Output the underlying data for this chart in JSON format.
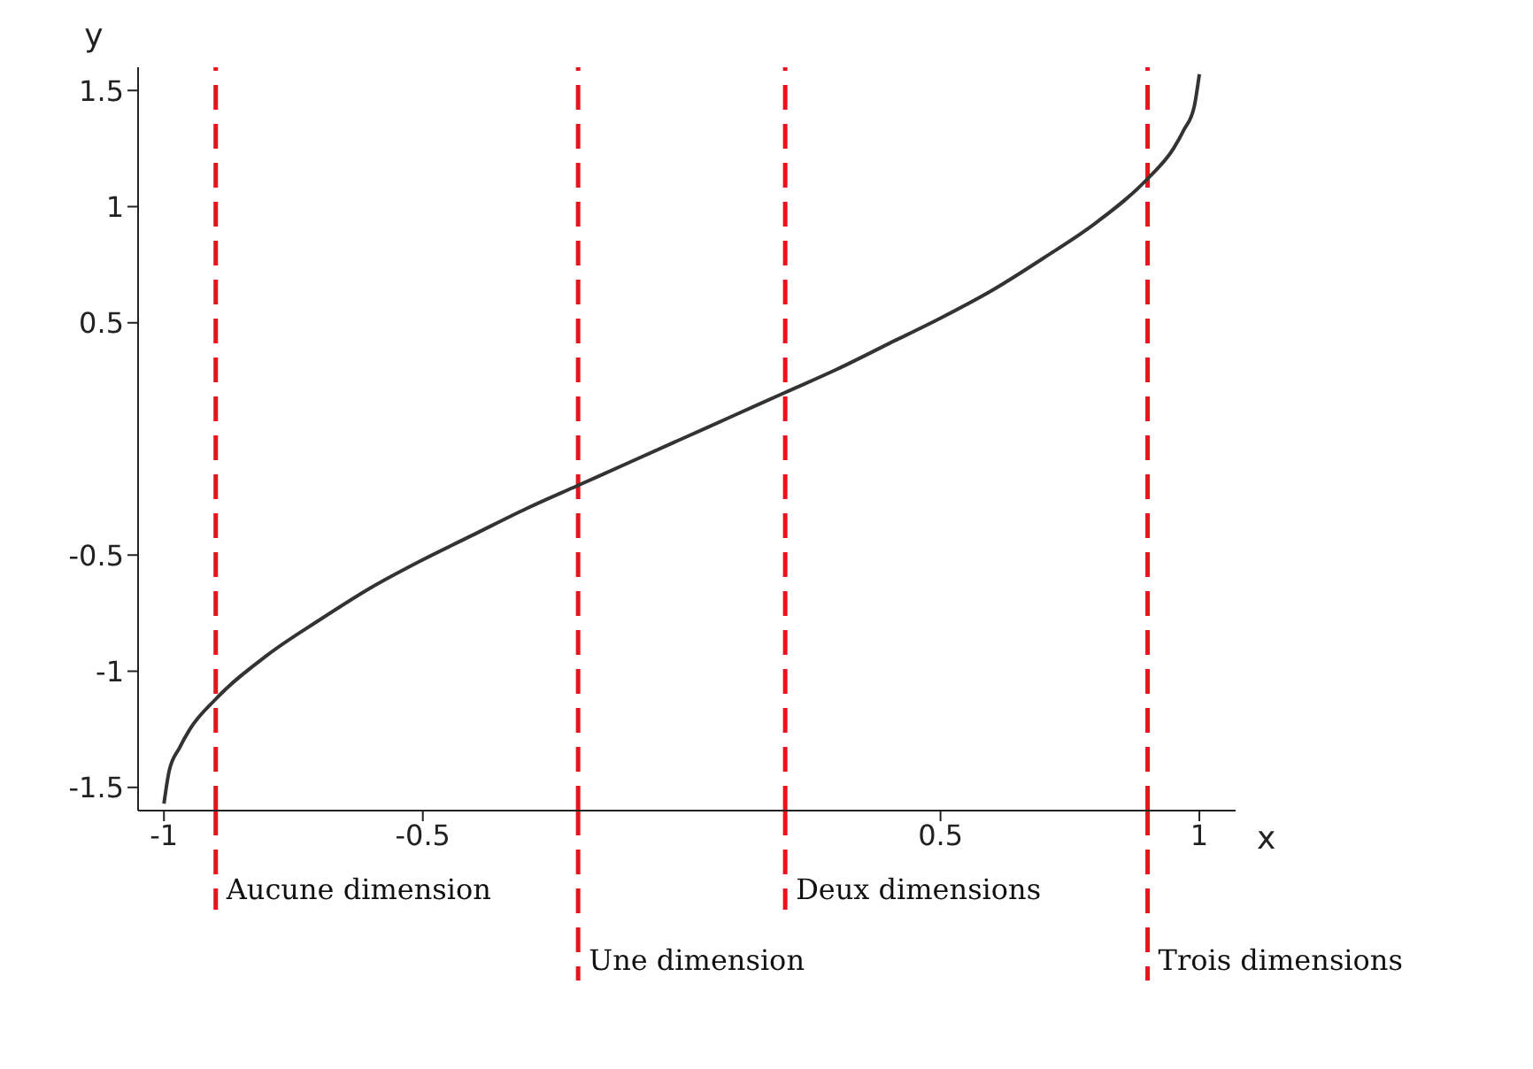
{
  "chart_data": {
    "type": "line",
    "xlabel": "x",
    "ylabel": "y",
    "x": [
      -1,
      -0.99,
      -0.97,
      -0.95,
      -0.9,
      -0.8,
      -0.7,
      -0.6,
      -0.5,
      -0.4,
      -0.3,
      -0.2,
      -0.1,
      0,
      0.1,
      0.2,
      0.3,
      0.4,
      0.5,
      0.6,
      0.7,
      0.8,
      0.9,
      0.95,
      0.97,
      0.99,
      1
    ],
    "series": [
      {
        "color": "#333333",
        "values": [
          -1.57,
          -1.43,
          -1.33,
          -1.25,
          -1.12,
          -0.93,
          -0.78,
          -0.64,
          -0.52,
          -0.41,
          -0.3,
          -0.2,
          -0.1,
          0,
          0.1,
          0.2,
          0.3,
          0.41,
          0.52,
          0.64,
          0.78,
          0.93,
          1.12,
          1.25,
          1.33,
          1.43,
          1.57
        ]
      }
    ],
    "xlim": [
      -1.05,
      1.07
    ],
    "ylim": [
      -1.6,
      1.6
    ],
    "xticks": [
      -1,
      -0.5,
      0.5,
      1
    ],
    "yticks": [
      -1.5,
      -1,
      -0.5,
      0.5,
      1,
      1.5
    ],
    "grid": false,
    "legend": false,
    "marker": "none",
    "line_style": "solid",
    "ref_lines": [
      {
        "axis": "x",
        "value": -0.9,
        "label": "Aucune dimension",
        "color": "#e8141c",
        "line_style": "dashed"
      },
      {
        "axis": "x",
        "value": -0.2,
        "label": "Une dimension",
        "color": "#e8141c",
        "line_style": "dashed"
      },
      {
        "axis": "x",
        "value": 0.2,
        "label": "Deux dimensions",
        "color": "#e8141c",
        "line_style": "dashed"
      },
      {
        "axis": "x",
        "value": 0.9,
        "label": "Trois dimensions",
        "color": "#e8141c",
        "line_style": "dashed"
      }
    ]
  }
}
